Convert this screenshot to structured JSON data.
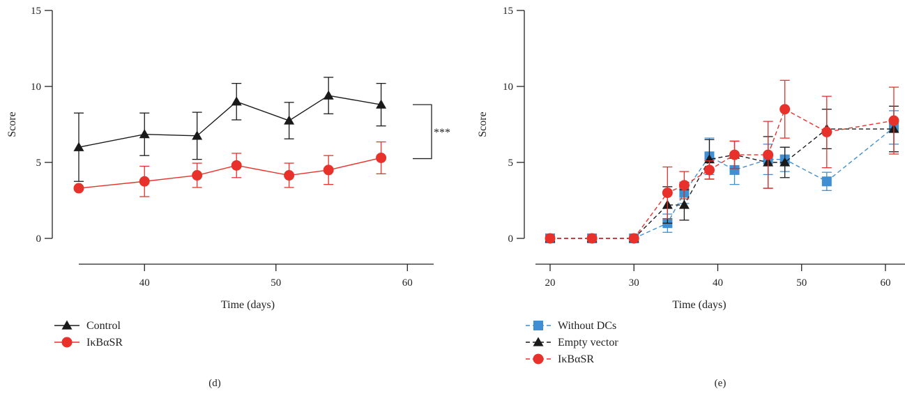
{
  "chart_data": [
    {
      "type": "line",
      "panel_label": "(d)",
      "xlabel": "Time (days)",
      "ylabel": "Score",
      "xlim": [
        35,
        62
      ],
      "ylim": [
        0,
        15
      ],
      "xticks": [
        40,
        50,
        60
      ],
      "yticks": [
        0,
        5,
        10,
        15
      ],
      "legend": "bottom-left",
      "annotation": "***",
      "series": [
        {
          "name": "Control",
          "color": "#1a1a1a",
          "marker": "triangle",
          "dash": "solid",
          "x": [
            35,
            40,
            44,
            47,
            51,
            54,
            58
          ],
          "y": [
            6.0,
            6.85,
            6.75,
            9.0,
            7.75,
            9.4,
            8.8
          ],
          "err": [
            2.25,
            1.4,
            1.55,
            1.2,
            1.2,
            1.2,
            1.4
          ]
        },
        {
          "name": "IκBαSR",
          "color": "#e8312a",
          "marker": "circle",
          "dash": "solid",
          "x": [
            35,
            40,
            44,
            47,
            51,
            54,
            58
          ],
          "y": [
            3.3,
            3.75,
            4.15,
            4.8,
            4.15,
            4.5,
            5.3
          ],
          "err": [
            0,
            1.0,
            0.8,
            0.8,
            0.8,
            0.95,
            1.05
          ]
        }
      ]
    },
    {
      "type": "line",
      "panel_label": "(e)",
      "xlabel": "Time (days)",
      "ylabel": "Score",
      "xlim": [
        20,
        62
      ],
      "ylim": [
        0,
        15
      ],
      "xticks": [
        20,
        30,
        40,
        50,
        60
      ],
      "yticks": [
        0,
        5,
        10,
        15
      ],
      "legend": "bottom-left",
      "series": [
        {
          "name": "Without DCs",
          "color": "#3f8fd2",
          "marker": "square",
          "dash": "dashed",
          "x": [
            20,
            25,
            30,
            34,
            36,
            39,
            42,
            46,
            48,
            53,
            61
          ],
          "y": [
            0,
            0,
            0,
            1.0,
            3.0,
            5.4,
            4.5,
            5.2,
            5.2,
            3.75,
            7.3
          ],
          "err": [
            0,
            0,
            0,
            0.6,
            0.7,
            1.2,
            0.95,
            1.0,
            0.8,
            0.6,
            1.1
          ]
        },
        {
          "name": "Empty vector",
          "color": "#1a1a1a",
          "marker": "triangle",
          "dash": "dashed",
          "x": [
            20,
            25,
            30,
            34,
            36,
            39,
            42,
            46,
            48,
            53,
            61
          ],
          "y": [
            0,
            0,
            0,
            2.2,
            2.2,
            5.2,
            5.5,
            5.0,
            5.0,
            7.2,
            7.2
          ],
          "err": [
            0,
            0,
            0,
            1.2,
            1.0,
            1.3,
            0.9,
            1.7,
            1.0,
            1.3,
            1.5
          ]
        },
        {
          "name": "IκBαSR",
          "color": "#e8312a",
          "marker": "circle",
          "dash": "dashed",
          "x": [
            20,
            25,
            30,
            34,
            36,
            39,
            42,
            46,
            48,
            53,
            61
          ],
          "y": [
            0,
            0,
            0,
            3.0,
            3.5,
            4.5,
            5.5,
            5.5,
            8.5,
            7.0,
            7.75
          ],
          "err": [
            0,
            0,
            0,
            1.7,
            0.9,
            0.6,
            0.9,
            2.2,
            1.9,
            2.35,
            2.2
          ]
        }
      ]
    }
  ]
}
